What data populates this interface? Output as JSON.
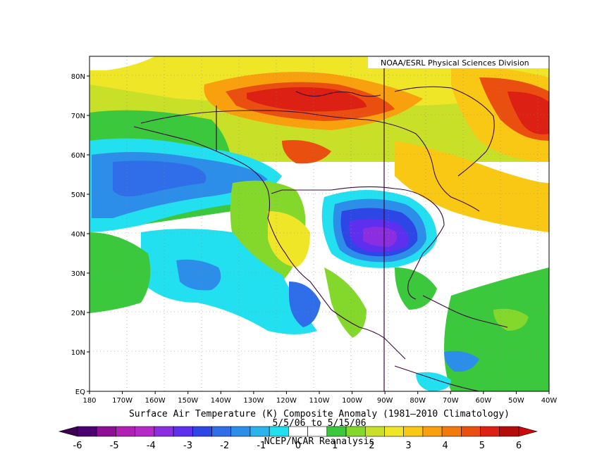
{
  "credit": "NOAA/ESRL Physical Sciences Division",
  "title": "Surface Air Temperature (K) Composite Anomaly (1981–2010 Climatology)",
  "dates": "5/5/06 to 5/15/06",
  "source": "NCEP/NCAR Reanalysis",
  "axes": {
    "lon_labels": [
      "180",
      "170W",
      "160W",
      "150W",
      "140W",
      "130W",
      "120W",
      "110W",
      "100W",
      "90W",
      "80W",
      "70W",
      "60W",
      "50W",
      "40W"
    ],
    "lat_labels": [
      "EQ",
      "10N",
      "20N",
      "30N",
      "40N",
      "50N",
      "60N",
      "70N",
      "80N"
    ]
  },
  "colorbar": {
    "labels": [
      "-6",
      "-5",
      "-4",
      "-3",
      "-2",
      "-1",
      "0",
      "1",
      "2",
      "3",
      "4",
      "5",
      "6"
    ],
    "colors": [
      "#4b0070",
      "#8c0f96",
      "#b21fb4",
      "#b42ac8",
      "#8a2ee0",
      "#5f2ff0",
      "#2d46e6",
      "#2f6ee8",
      "#2c8ee8",
      "#2bb4ec",
      "#23e0f0",
      "#ffffff",
      "#ffffff",
      "#3cc83c",
      "#84d82c",
      "#c8e028",
      "#f0e628",
      "#f8c814",
      "#f8a00e",
      "#f07a0c",
      "#ea4f10",
      "#dc2014",
      "#b40a0a"
    ]
  }
}
